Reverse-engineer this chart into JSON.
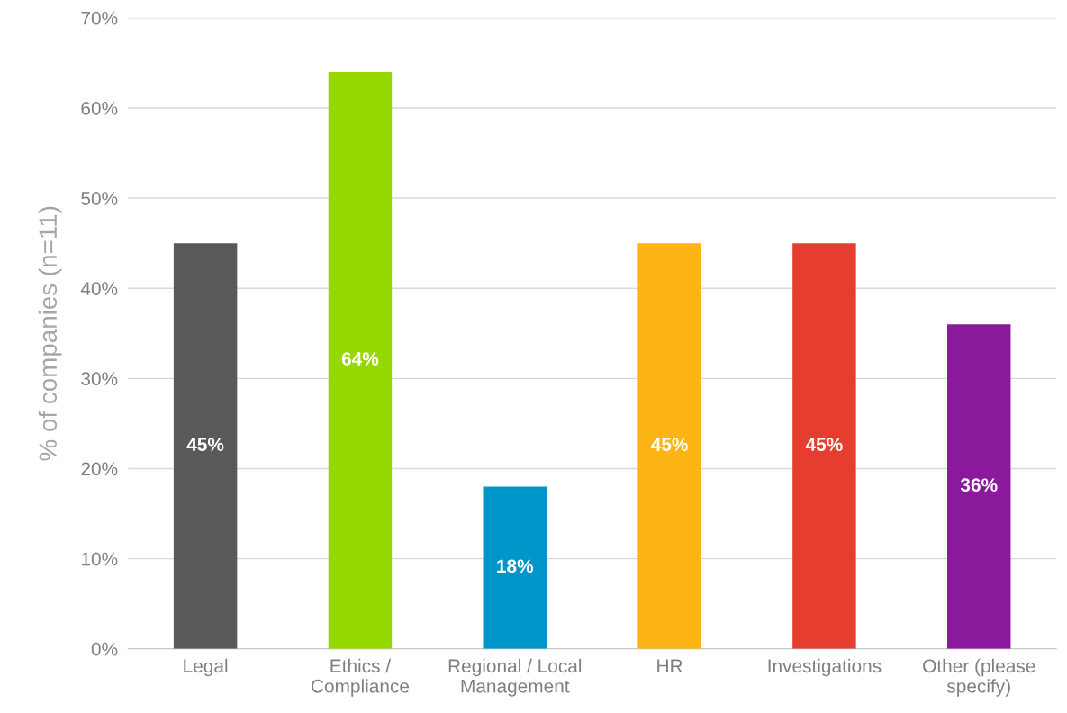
{
  "chart_data": {
    "type": "bar",
    "ylabel": "% of companies (n=11)",
    "categories": [
      "Legal",
      "Ethics /\nCompliance",
      "Regional / Local\nManagement",
      "HR",
      "Investigations",
      "Other (please\nspecify)"
    ],
    "values": [
      45,
      64,
      18,
      45,
      45,
      36
    ],
    "value_labels": [
      "45%",
      "64%",
      "18%",
      "45%",
      "45%",
      "36%"
    ],
    "colors": [
      "#58595b",
      "#97d700",
      "#0095c8",
      "#fdb515",
      "#e53e30",
      "#8a1a9b"
    ],
    "ylim": [
      0,
      70
    ],
    "yticks": [
      {
        "value": 0,
        "label": "0%"
      },
      {
        "value": 10,
        "label": "10%"
      },
      {
        "value": 20,
        "label": "20%"
      },
      {
        "value": 30,
        "label": "30%"
      },
      {
        "value": 40,
        "label": "40%"
      },
      {
        "value": 50,
        "label": "50%"
      },
      {
        "value": 60,
        "label": "60%"
      },
      {
        "value": 70,
        "label": "70%"
      }
    ],
    "grid": "y"
  }
}
